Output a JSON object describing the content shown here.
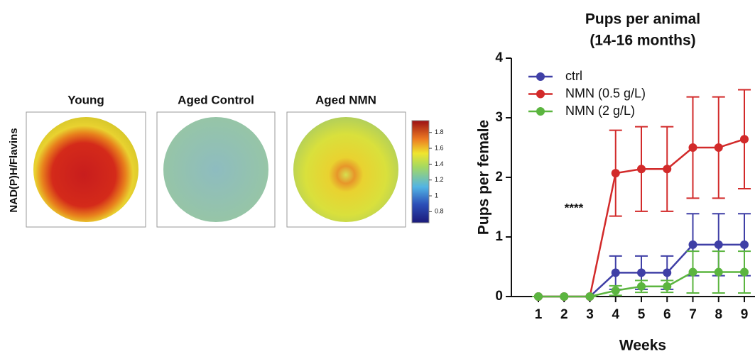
{
  "chart_data": [
    {
      "type": "image",
      "ylabel": "NAD(P)H/Flavins",
      "panels": [
        "Young",
        "Aged Control",
        "Aged NMN"
      ],
      "colorbar": {
        "lim": [
          0.66,
          1.95
        ],
        "ticks": [
          0.8,
          1,
          1.2,
          1.4,
          1.6,
          1.8
        ]
      }
    },
    {
      "type": "line",
      "title": "Pups per animal",
      "subtitle": "(14-16 months)",
      "xlabel": "Weeks",
      "ylabel": "Pups per female",
      "annotation": "****",
      "x": [
        1,
        2,
        3,
        4,
        5,
        6,
        7,
        8,
        9
      ],
      "xlim": [
        -0.1,
        9.4
      ],
      "xticks": [
        1,
        2,
        3,
        4,
        5,
        6,
        7,
        8,
        9
      ],
      "ylim": [
        0,
        4
      ],
      "yticks": [
        0,
        1,
        2,
        3,
        4
      ],
      "legend": "upper left",
      "series": [
        {
          "name": "ctrl",
          "color": "#3f3fa6",
          "values": [
            0,
            0,
            0,
            0.4,
            0.4,
            0.4,
            0.87,
            0.87,
            0.87
          ],
          "errors": [
            0,
            0,
            0,
            0.28,
            0.28,
            0.28,
            0.52,
            0.52,
            0.52
          ]
        },
        {
          "name": "NMN (0.5 g/L)",
          "color": "#d22a2a",
          "values": [
            0,
            0,
            0,
            2.07,
            2.14,
            2.14,
            2.5,
            2.5,
            2.64
          ],
          "errors": [
            0,
            0,
            0,
            0.72,
            0.71,
            0.71,
            0.85,
            0.85,
            0.83
          ]
        },
        {
          "name": "NMN (2 g/L)",
          "color": "#5bb53f",
          "values": [
            0,
            0,
            0,
            0.1,
            0.17,
            0.17,
            0.41,
            0.41,
            0.41
          ],
          "errors": [
            0,
            0,
            0,
            0.08,
            0.1,
            0.1,
            0.35,
            0.35,
            0.35
          ]
        }
      ]
    }
  ]
}
